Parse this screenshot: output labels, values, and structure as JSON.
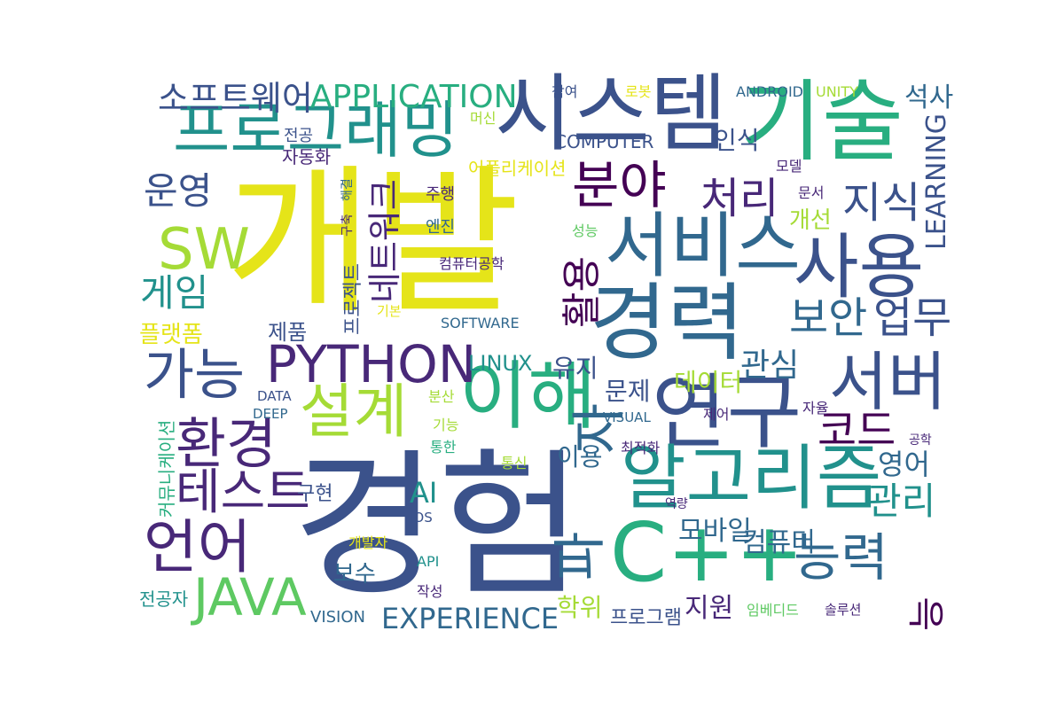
{
  "colors": {
    "background": "#ffffff",
    "palette": {
      "yellow": "#e5e419",
      "lime": "#a5db36",
      "green": "#5ec962",
      "teal": "#21918c",
      "seagreen": "#28ae80",
      "blue": "#3b528b",
      "indigo": "#31688e",
      "purple": "#440154",
      "violet": "#482878"
    }
  },
  "words": [
    {
      "text": "경험",
      "color": "blue"
    },
    {
      "text": "개발",
      "color": "yellow"
    },
    {
      "text": "시스템",
      "color": "blue"
    },
    {
      "text": "기술",
      "color": "seagreen"
    },
    {
      "text": "프로그래밍",
      "color": "teal"
    },
    {
      "text": "경력",
      "color": "indigo"
    },
    {
      "text": "연구",
      "color": "blue"
    },
    {
      "text": "C++",
      "color": "seagreen"
    },
    {
      "text": "이해",
      "color": "seagreen"
    },
    {
      "text": "알고리즘",
      "color": "teal"
    },
    {
      "text": "사용",
      "color": "blue"
    },
    {
      "text": "서비스",
      "color": "indigo"
    },
    {
      "text": "분야",
      "color": "purple"
    },
    {
      "text": "SW",
      "color": "lime"
    },
    {
      "text": "설계",
      "color": "lime"
    },
    {
      "text": "PYTHON",
      "color": "violet"
    },
    {
      "text": "환경",
      "color": "violet"
    },
    {
      "text": "가능",
      "color": "blue"
    },
    {
      "text": "언어",
      "color": "violet"
    },
    {
      "text": "JAVA",
      "color": "green"
    },
    {
      "text": "서버",
      "color": "blue"
    },
    {
      "text": "능력",
      "color": "indigo"
    },
    {
      "text": "코드",
      "color": "purple"
    },
    {
      "text": "보안",
      "color": "indigo"
    },
    {
      "text": "업무",
      "color": "blue"
    },
    {
      "text": "테스트",
      "color": "violet"
    },
    {
      "text": "처리",
      "color": "violet"
    },
    {
      "text": "지식",
      "color": "blue"
    },
    {
      "text": "운영",
      "color": "blue"
    },
    {
      "text": "게임",
      "color": "teal"
    },
    {
      "text": "관리",
      "color": "teal"
    },
    {
      "text": "소프트웨어",
      "color": "blue"
    },
    {
      "text": "APPLICATION",
      "color": "seagreen"
    },
    {
      "text": "LEARNING",
      "color": "blue"
    },
    {
      "text": "석사",
      "color": "indigo"
    },
    {
      "text": "관심",
      "color": "indigo"
    },
    {
      "text": "활용",
      "color": "purple"
    },
    {
      "text": "EXPERIENCE",
      "color": "indigo"
    },
    {
      "text": "능",
      "color": "purple"
    },
    {
      "text": "자",
      "color": "indigo"
    },
    {
      "text": "파",
      "color": "indigo"
    },
    {
      "text": "데이터",
      "color": "lime"
    },
    {
      "text": "영어",
      "color": "indigo"
    },
    {
      "text": "네트워크",
      "color": "violet"
    },
    {
      "text": "컴퓨터",
      "color": "indigo"
    },
    {
      "text": "모바일",
      "color": "indigo"
    },
    {
      "text": "학위",
      "color": "lime"
    },
    {
      "text": "지원",
      "color": "violet"
    },
    {
      "text": "유지",
      "color": "blue"
    },
    {
      "text": "LINUX",
      "color": "teal"
    },
    {
      "text": "문제",
      "color": "blue"
    },
    {
      "text": "AI",
      "color": "teal"
    },
    {
      "text": "인식",
      "color": "blue"
    },
    {
      "text": "이용",
      "color": "indigo"
    },
    {
      "text": "제품",
      "color": "blue"
    },
    {
      "text": "개선",
      "color": "lime"
    },
    {
      "text": "플랫폼",
      "color": "yellow"
    },
    {
      "text": "보수",
      "color": "indigo"
    },
    {
      "text": "구현",
      "color": "blue"
    },
    {
      "text": "프로그램",
      "color": "blue"
    },
    {
      "text": "VISION",
      "color": "indigo"
    },
    {
      "text": "커뮤니케이션",
      "color": "seagreen"
    },
    {
      "text": "COMPUTER",
      "color": "blue"
    },
    {
      "text": "어플리케이션",
      "color": "yellow"
    },
    {
      "text": "전공자",
      "color": "teal"
    },
    {
      "text": "프로젝트",
      "color": "blue"
    },
    {
      "text": "자동화",
      "color": "violet"
    },
    {
      "text": "SOFTWARE",
      "color": "indigo"
    },
    {
      "text": "ANDROID",
      "color": "indigo"
    },
    {
      "text": "UNITY",
      "color": "lime"
    },
    {
      "text": "참여",
      "color": "blue"
    },
    {
      "text": "로봇",
      "color": "yellow"
    },
    {
      "text": "머신",
      "color": "lime"
    },
    {
      "text": "전공",
      "color": "blue"
    },
    {
      "text": "주행",
      "color": "violet"
    },
    {
      "text": "엔진",
      "color": "indigo"
    },
    {
      "text": "구축",
      "color": "violet"
    },
    {
      "text": "해결",
      "color": "indigo"
    },
    {
      "text": "모델",
      "color": "violet"
    },
    {
      "text": "문서",
      "color": "violet"
    },
    {
      "text": "성능",
      "color": "green"
    },
    {
      "text": "컴퓨터공학",
      "color": "violet"
    },
    {
      "text": "기본",
      "color": "yellow"
    },
    {
      "text": "분산",
      "color": "lime"
    },
    {
      "text": "DATA",
      "color": "blue"
    },
    {
      "text": "DEEP",
      "color": "indigo"
    },
    {
      "text": "VISUAL",
      "color": "indigo"
    },
    {
      "text": "기능",
      "color": "lime"
    },
    {
      "text": "제어",
      "color": "violet"
    },
    {
      "text": "자율",
      "color": "violet"
    },
    {
      "text": "최적화",
      "color": "violet"
    },
    {
      "text": "통한",
      "color": "seagreen"
    },
    {
      "text": "통신",
      "color": "lime"
    },
    {
      "text": "공학",
      "color": "violet"
    },
    {
      "text": "IOS",
      "color": "blue"
    },
    {
      "text": "역량",
      "color": "violet"
    },
    {
      "text": "개발자",
      "color": "yellow"
    },
    {
      "text": "API",
      "color": "teal"
    },
    {
      "text": "작성",
      "color": "violet"
    },
    {
      "text": "임베디드",
      "color": "green"
    },
    {
      "text": "솔루션",
      "color": "violet"
    }
  ]
}
